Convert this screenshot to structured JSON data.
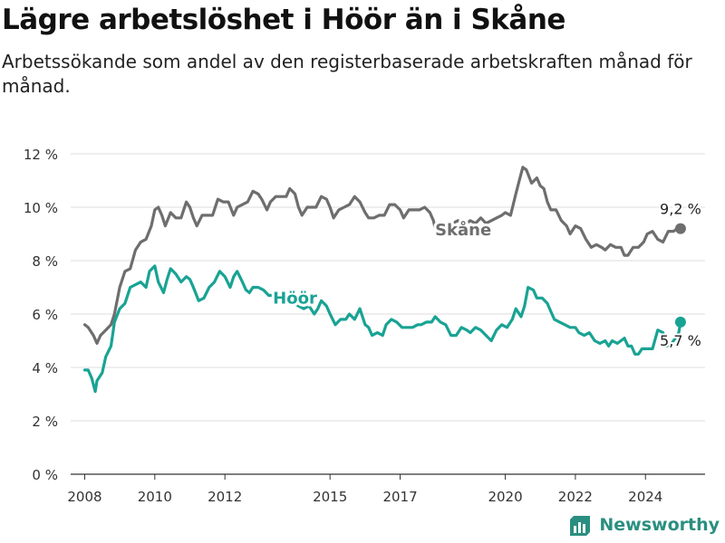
{
  "header": {
    "title": "Lägre arbetslöshet i Höör än i Skåne",
    "subtitle": "Arbetssökande som andel av den registerbaserade arbetskraften månad för månad."
  },
  "brand": {
    "name": "Newsworthy",
    "color": "#2a8f80",
    "icon": "bar-chart-logo-icon"
  },
  "chart_data": {
    "type": "line",
    "ylim": [
      0,
      12
    ],
    "xlim": [
      2007.6,
      2025.7
    ],
    "yticks": [
      {
        "value": 0,
        "label": "0 %"
      },
      {
        "value": 2,
        "label": "2 %"
      },
      {
        "value": 4,
        "label": "4 %"
      },
      {
        "value": 6,
        "label": "6 %"
      },
      {
        "value": 8,
        "label": "8 %"
      },
      {
        "value": 10,
        "label": "10 %"
      },
      {
        "value": 12,
        "label": "12 %"
      }
    ],
    "xticks": [
      {
        "value": 2008,
        "label": "2008"
      },
      {
        "value": 2010,
        "label": "2010"
      },
      {
        "value": 2012,
        "label": "2012"
      },
      {
        "value": 2015,
        "label": "2015"
      },
      {
        "value": 2017,
        "label": "2017"
      },
      {
        "value": 2020,
        "label": "2020"
      },
      {
        "value": 2022,
        "label": "2022"
      },
      {
        "value": 2024,
        "label": "2024"
      }
    ],
    "grid": true,
    "series": [
      {
        "name": "Skåne",
        "color": "#6e6e6e",
        "end_label": "9,2 %",
        "points": [
          [
            2008.0,
            5.6
          ],
          [
            2008.1,
            5.5
          ],
          [
            2008.25,
            5.2
          ],
          [
            2008.35,
            4.9
          ],
          [
            2008.45,
            5.2
          ],
          [
            2008.6,
            5.4
          ],
          [
            2008.75,
            5.6
          ],
          [
            2008.85,
            6.0
          ],
          [
            2009.0,
            7.0
          ],
          [
            2009.15,
            7.6
          ],
          [
            2009.3,
            7.7
          ],
          [
            2009.45,
            8.4
          ],
          [
            2009.6,
            8.7
          ],
          [
            2009.75,
            8.8
          ],
          [
            2009.9,
            9.3
          ],
          [
            2010.0,
            9.9
          ],
          [
            2010.1,
            10.0
          ],
          [
            2010.2,
            9.7
          ],
          [
            2010.3,
            9.3
          ],
          [
            2010.45,
            9.8
          ],
          [
            2010.6,
            9.6
          ],
          [
            2010.75,
            9.6
          ],
          [
            2010.9,
            10.2
          ],
          [
            2011.0,
            10.0
          ],
          [
            2011.1,
            9.6
          ],
          [
            2011.2,
            9.3
          ],
          [
            2011.35,
            9.7
          ],
          [
            2011.5,
            9.7
          ],
          [
            2011.65,
            9.7
          ],
          [
            2011.8,
            10.3
          ],
          [
            2011.95,
            10.2
          ],
          [
            2012.1,
            10.2
          ],
          [
            2012.25,
            9.7
          ],
          [
            2012.35,
            10.0
          ],
          [
            2012.5,
            10.1
          ],
          [
            2012.65,
            10.2
          ],
          [
            2012.8,
            10.6
          ],
          [
            2012.95,
            10.5
          ],
          [
            2013.05,
            10.3
          ],
          [
            2013.2,
            9.9
          ],
          [
            2013.3,
            10.2
          ],
          [
            2013.45,
            10.4
          ],
          [
            2013.6,
            10.4
          ],
          [
            2013.75,
            10.4
          ],
          [
            2013.85,
            10.7
          ],
          [
            2014.0,
            10.5
          ],
          [
            2014.1,
            10.0
          ],
          [
            2014.2,
            9.7
          ],
          [
            2014.35,
            10.0
          ],
          [
            2014.5,
            10.0
          ],
          [
            2014.6,
            10.0
          ],
          [
            2014.75,
            10.4
          ],
          [
            2014.9,
            10.3
          ],
          [
            2015.0,
            10.0
          ],
          [
            2015.1,
            9.6
          ],
          [
            2015.25,
            9.9
          ],
          [
            2015.4,
            10.0
          ],
          [
            2015.55,
            10.1
          ],
          [
            2015.7,
            10.4
          ],
          [
            2015.85,
            10.2
          ],
          [
            2016.0,
            9.8
          ],
          [
            2016.1,
            9.6
          ],
          [
            2016.25,
            9.6
          ],
          [
            2016.4,
            9.7
          ],
          [
            2016.55,
            9.7
          ],
          [
            2016.7,
            10.1
          ],
          [
            2016.85,
            10.1
          ],
          [
            2017.0,
            9.9
          ],
          [
            2017.1,
            9.6
          ],
          [
            2017.25,
            9.9
          ],
          [
            2017.4,
            9.9
          ],
          [
            2017.55,
            9.9
          ],
          [
            2017.7,
            10.0
          ],
          [
            2017.85,
            9.8
          ],
          [
            2017.95,
            9.5
          ],
          [
            2018.0,
            9.2
          ],
          [
            2018.4,
            9.2
          ],
          [
            2018.5,
            9.4
          ],
          [
            2018.65,
            9.5
          ],
          [
            2018.8,
            9.3
          ],
          [
            2019.0,
            9.5
          ],
          [
            2019.15,
            9.4
          ],
          [
            2019.3,
            9.6
          ],
          [
            2019.45,
            9.4
          ],
          [
            2019.6,
            9.5
          ],
          [
            2019.75,
            9.6
          ],
          [
            2019.9,
            9.7
          ],
          [
            2020.0,
            9.8
          ],
          [
            2020.15,
            9.7
          ],
          [
            2020.3,
            10.5
          ],
          [
            2020.4,
            11.0
          ],
          [
            2020.5,
            11.5
          ],
          [
            2020.6,
            11.4
          ],
          [
            2020.75,
            10.9
          ],
          [
            2020.9,
            11.1
          ],
          [
            2021.0,
            10.8
          ],
          [
            2021.1,
            10.7
          ],
          [
            2021.2,
            10.2
          ],
          [
            2021.3,
            9.9
          ],
          [
            2021.45,
            9.9
          ],
          [
            2021.6,
            9.5
          ],
          [
            2021.75,
            9.3
          ],
          [
            2021.85,
            9.0
          ],
          [
            2022.0,
            9.3
          ],
          [
            2022.15,
            9.2
          ],
          [
            2022.3,
            8.8
          ],
          [
            2022.45,
            8.5
          ],
          [
            2022.6,
            8.6
          ],
          [
            2022.75,
            8.5
          ],
          [
            2022.85,
            8.4
          ],
          [
            2023.0,
            8.6
          ],
          [
            2023.15,
            8.5
          ],
          [
            2023.3,
            8.5
          ],
          [
            2023.4,
            8.2
          ],
          [
            2023.5,
            8.2
          ],
          [
            2023.65,
            8.5
          ],
          [
            2023.8,
            8.5
          ],
          [
            2023.95,
            8.7
          ],
          [
            2024.05,
            9.0
          ],
          [
            2024.2,
            9.1
          ],
          [
            2024.35,
            8.8
          ],
          [
            2024.5,
            8.7
          ],
          [
            2024.65,
            9.1
          ],
          [
            2024.8,
            9.1
          ],
          [
            2024.9,
            9.2
          ],
          [
            2025.0,
            9.2
          ]
        ]
      },
      {
        "name": "Höör",
        "color": "#19a394",
        "end_label": "5,7 %",
        "points": [
          [
            2008.0,
            3.9
          ],
          [
            2008.1,
            3.9
          ],
          [
            2008.2,
            3.6
          ],
          [
            2008.3,
            3.1
          ],
          [
            2008.35,
            3.5
          ],
          [
            2008.5,
            3.8
          ],
          [
            2008.6,
            4.4
          ],
          [
            2008.75,
            4.8
          ],
          [
            2008.85,
            5.7
          ],
          [
            2009.0,
            6.2
          ],
          [
            2009.15,
            6.4
          ],
          [
            2009.3,
            7.0
          ],
          [
            2009.45,
            7.1
          ],
          [
            2009.6,
            7.2
          ],
          [
            2009.75,
            7.0
          ],
          [
            2009.85,
            7.6
          ],
          [
            2010.0,
            7.8
          ],
          [
            2010.1,
            7.2
          ],
          [
            2010.25,
            6.8
          ],
          [
            2010.35,
            7.3
          ],
          [
            2010.45,
            7.7
          ],
          [
            2010.6,
            7.5
          ],
          [
            2010.75,
            7.2
          ],
          [
            2010.9,
            7.4
          ],
          [
            2011.0,
            7.3
          ],
          [
            2011.1,
            7.0
          ],
          [
            2011.25,
            6.5
          ],
          [
            2011.4,
            6.6
          ],
          [
            2011.55,
            7.0
          ],
          [
            2011.7,
            7.2
          ],
          [
            2011.85,
            7.6
          ],
          [
            2012.0,
            7.4
          ],
          [
            2012.15,
            7.0
          ],
          [
            2012.25,
            7.4
          ],
          [
            2012.35,
            7.6
          ],
          [
            2012.5,
            7.2
          ],
          [
            2012.6,
            6.9
          ],
          [
            2012.7,
            6.8
          ],
          [
            2012.8,
            7.0
          ],
          [
            2012.95,
            7.0
          ],
          [
            2013.1,
            6.9
          ],
          [
            2013.25,
            6.7
          ],
          [
            2013.4,
            6.7
          ],
          [
            2013.55,
            6.6
          ],
          [
            2013.7,
            6.4
          ],
          [
            2013.85,
            6.5
          ],
          [
            2014.0,
            6.4
          ],
          [
            2014.1,
            6.3
          ],
          [
            2014.25,
            6.2
          ],
          [
            2014.4,
            6.3
          ],
          [
            2014.55,
            6.0
          ],
          [
            2014.65,
            6.2
          ],
          [
            2014.75,
            6.5
          ],
          [
            2014.9,
            6.3
          ],
          [
            2015.0,
            6.0
          ],
          [
            2015.15,
            5.6
          ],
          [
            2015.3,
            5.8
          ],
          [
            2015.45,
            5.8
          ],
          [
            2015.55,
            6.0
          ],
          [
            2015.7,
            5.8
          ],
          [
            2015.85,
            6.2
          ],
          [
            2016.0,
            5.6
          ],
          [
            2016.1,
            5.5
          ],
          [
            2016.2,
            5.2
          ],
          [
            2016.35,
            5.3
          ],
          [
            2016.5,
            5.2
          ],
          [
            2016.6,
            5.6
          ],
          [
            2016.75,
            5.8
          ],
          [
            2016.9,
            5.7
          ],
          [
            2017.05,
            5.5
          ],
          [
            2017.2,
            5.5
          ],
          [
            2017.35,
            5.5
          ],
          [
            2017.5,
            5.6
          ],
          [
            2017.6,
            5.6
          ],
          [
            2017.75,
            5.7
          ],
          [
            2017.9,
            5.7
          ],
          [
            2018.0,
            5.9
          ],
          [
            2018.15,
            5.7
          ],
          [
            2018.3,
            5.6
          ],
          [
            2018.45,
            5.2
          ],
          [
            2018.6,
            5.2
          ],
          [
            2018.75,
            5.5
          ],
          [
            2018.9,
            5.4
          ],
          [
            2019.0,
            5.3
          ],
          [
            2019.15,
            5.5
          ],
          [
            2019.3,
            5.4
          ],
          [
            2019.45,
            5.2
          ],
          [
            2019.6,
            5.0
          ],
          [
            2019.75,
            5.4
          ],
          [
            2019.9,
            5.6
          ],
          [
            2020.05,
            5.5
          ],
          [
            2020.2,
            5.8
          ],
          [
            2020.3,
            6.2
          ],
          [
            2020.45,
            5.9
          ],
          [
            2020.55,
            6.3
          ],
          [
            2020.65,
            7.0
          ],
          [
            2020.8,
            6.9
          ],
          [
            2020.9,
            6.6
          ],
          [
            2021.05,
            6.6
          ],
          [
            2021.2,
            6.4
          ],
          [
            2021.3,
            6.1
          ],
          [
            2021.4,
            5.8
          ],
          [
            2021.55,
            5.7
          ],
          [
            2021.7,
            5.6
          ],
          [
            2021.85,
            5.5
          ],
          [
            2022.0,
            5.5
          ],
          [
            2022.1,
            5.3
          ],
          [
            2022.25,
            5.2
          ],
          [
            2022.4,
            5.3
          ],
          [
            2022.55,
            5.0
          ],
          [
            2022.7,
            4.9
          ],
          [
            2022.85,
            5.0
          ],
          [
            2022.95,
            4.8
          ],
          [
            2023.05,
            5.0
          ],
          [
            2023.2,
            4.9
          ],
          [
            2023.3,
            5.0
          ],
          [
            2023.4,
            5.1
          ],
          [
            2023.5,
            4.8
          ],
          [
            2023.6,
            4.8
          ],
          [
            2023.7,
            4.5
          ],
          [
            2023.8,
            4.5
          ],
          [
            2023.9,
            4.7
          ],
          [
            2024.05,
            4.7
          ],
          [
            2024.2,
            4.7
          ],
          [
            2024.35,
            5.4
          ],
          [
            2024.5,
            5.3
          ],
          [
            2024.6,
            4.8
          ],
          [
            2024.75,
            4.9
          ],
          [
            2024.85,
            5.1
          ],
          [
            2024.95,
            5.3
          ],
          [
            2025.0,
            5.7
          ]
        ]
      }
    ],
    "series_labels": [
      {
        "series": "Skåne",
        "x": 2018.8,
        "y": 9.15
      },
      {
        "series": "Höör",
        "x": 2014.0,
        "y": 6.6
      }
    ]
  }
}
